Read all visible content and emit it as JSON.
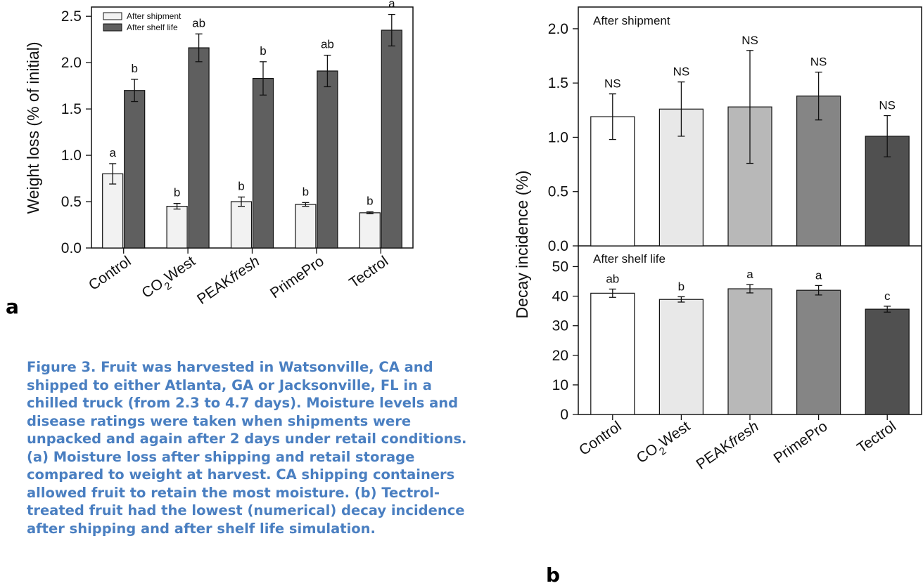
{
  "caption": "Figure 3. Fruit was harvested in Watsonville, CA and shipped to either Atlanta, GA  or Jacksonville, FL in a chilled truck (from 2.3 to 4.7 days). Moisture levels and disease ratings were taken when shipments were unpacked and again after 2 days under retail conditions. (a) Moisture loss after shipping and retail storage compared to weight at harvest. CA shipping containers allowed fruit to retain the most moisture. (b) Tectrol-treated fruit had the lowest (numerical) decay incidence after shipping and after shelf life simulation.",
  "panel_labels": {
    "a": "a",
    "b": "b"
  },
  "chart_data": [
    {
      "type": "bar",
      "panel": "a",
      "ylabel": "Weight loss (% of initial)",
      "ylim": [
        0,
        2.6
      ],
      "yticks": [
        "0.0",
        "0.5",
        "1.0",
        "1.5",
        "2.0",
        "2.5"
      ],
      "categories": [
        "Control",
        "CO2West",
        "PEAKfresh",
        "PrimePro",
        "Tectrol"
      ],
      "legend_position": "top-left",
      "series": [
        {
          "name": "After shipment",
          "color": "#f2f2f2",
          "values": [
            0.8,
            0.45,
            0.5,
            0.47,
            0.38
          ],
          "errors": [
            0.11,
            0.03,
            0.05,
            0.02,
            0.01
          ],
          "letters": [
            "a",
            "b",
            "b",
            "b",
            "b"
          ]
        },
        {
          "name": "After shelf life",
          "color": "#5f5f5f",
          "values": [
            1.7,
            2.16,
            1.83,
            1.91,
            2.35
          ],
          "errors": [
            0.12,
            0.15,
            0.18,
            0.17,
            0.17
          ],
          "letters": [
            "b",
            "ab",
            "b",
            "ab",
            "a"
          ]
        }
      ]
    },
    {
      "type": "bar",
      "panel": "b",
      "ylabel": "Decay incidence (%)",
      "categories": [
        "Control",
        "CO2West",
        "PEAKfresh",
        "PrimePro",
        "Tectrol"
      ],
      "colors": [
        "#ffffff",
        "#e8e8e8",
        "#b8b8b8",
        "#858585",
        "#505050"
      ],
      "subplots": [
        {
          "title": "After shipment",
          "ylim": [
            0,
            2.2
          ],
          "yticks": [
            "0.0",
            "0.5",
            "1.0",
            "1.5",
            "2.0"
          ],
          "values": [
            1.19,
            1.26,
            1.28,
            1.38,
            1.01
          ],
          "errors": [
            0.21,
            0.25,
            0.52,
            0.22,
            0.19
          ],
          "letters": [
            "NS",
            "NS",
            "NS",
            "NS",
            "NS"
          ]
        },
        {
          "title": "After shelf life",
          "ylim": [
            0,
            57
          ],
          "yticks": [
            "0",
            "10",
            "20",
            "30",
            "40",
            "50"
          ],
          "values": [
            41,
            38.9,
            42.5,
            42,
            35.6
          ],
          "errors": [
            1.4,
            0.9,
            1.4,
            1.6,
            1.0
          ],
          "letters": [
            "ab",
            "b",
            "a",
            "a",
            "c"
          ]
        }
      ]
    }
  ]
}
